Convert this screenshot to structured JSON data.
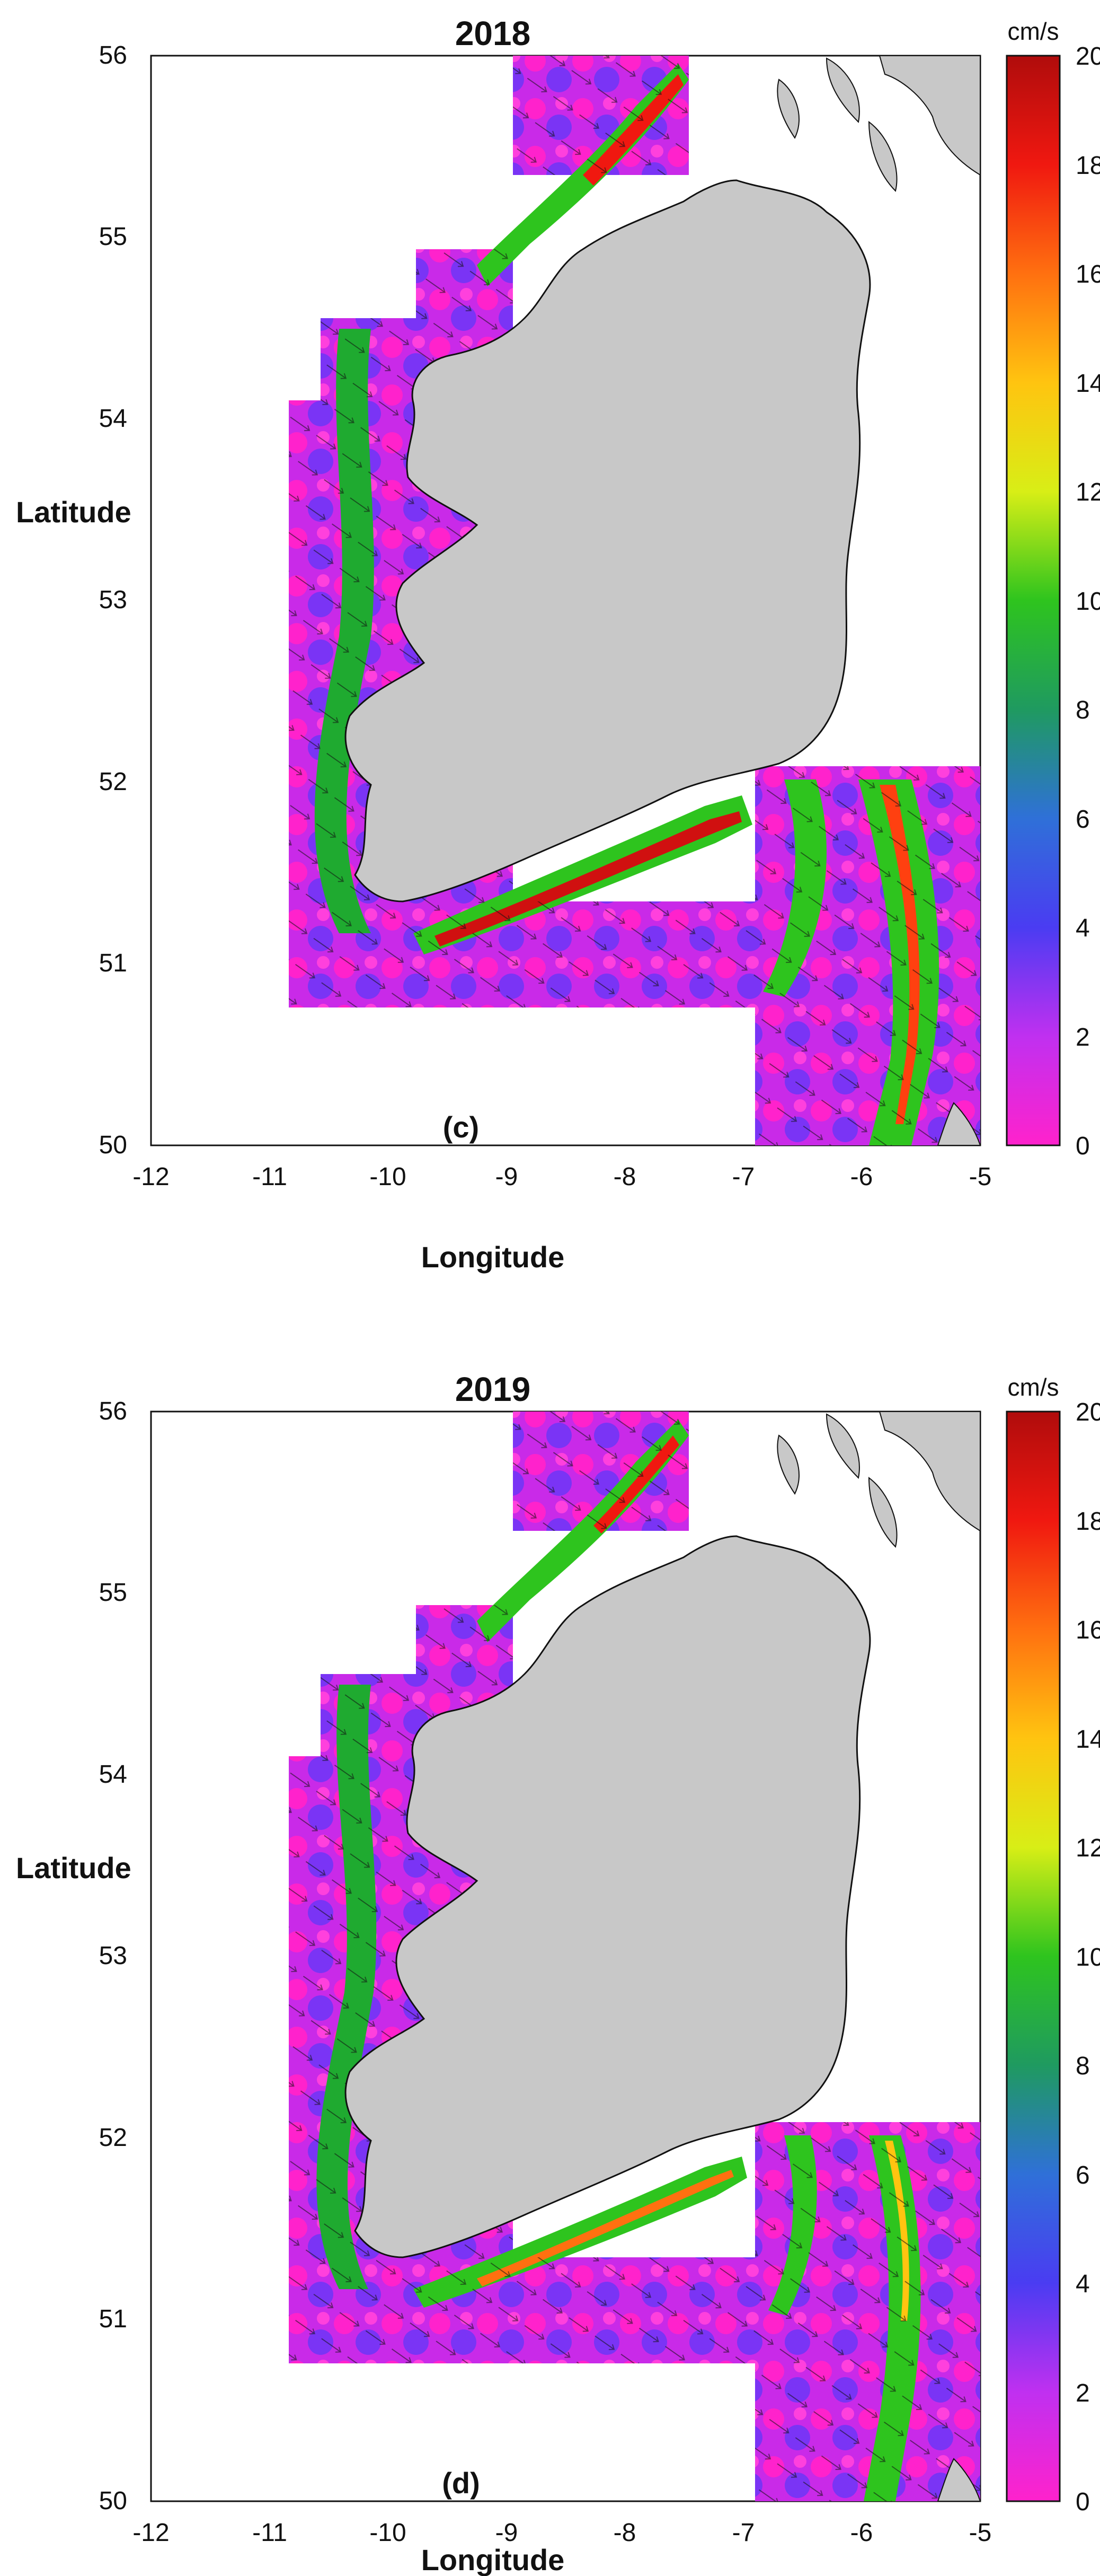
{
  "chart_data": [
    {
      "type": "heatmap",
      "title": "2018",
      "panel_label": "(c)",
      "xlabel": "Longitude",
      "ylabel": "Latitude",
      "xlim": [
        -12,
        -5
      ],
      "ylim": [
        50,
        56
      ],
      "xticks": [
        "-12",
        "-11",
        "-10",
        "-9",
        "-8",
        "-7",
        "-6",
        "-5"
      ],
      "yticks": [
        "50",
        "51",
        "52",
        "53",
        "54",
        "55",
        "56"
      ],
      "colorbar": {
        "unit": "cm/s",
        "range": [
          0,
          20
        ],
        "ticks": [
          "0",
          "2",
          "4",
          "6",
          "8",
          "10",
          "12",
          "14",
          "16",
          "18",
          "20"
        ]
      },
      "strong_currents": [
        "south coast (51.3-52.0 N, -9.5 to -7.0 E)",
        "Celtic/Irish Sea front (-6.5 to -5.5 E)",
        "north-west coast (55-56 N)"
      ]
    },
    {
      "type": "heatmap",
      "title": "2019",
      "panel_label": "(d)",
      "xlabel": "Longitude",
      "ylabel": "Latitude",
      "xlim": [
        -12,
        -5
      ],
      "ylim": [
        50,
        56
      ],
      "xticks": [
        "-12",
        "-11",
        "-10",
        "-9",
        "-8",
        "-7",
        "-6",
        "-5"
      ],
      "yticks": [
        "50",
        "51",
        "52",
        "53",
        "54",
        "55",
        "56"
      ],
      "colorbar": {
        "unit": "cm/s",
        "range": [
          0,
          20
        ],
        "ticks": [
          "0",
          "2",
          "4",
          "6",
          "8",
          "10",
          "12",
          "14",
          "16",
          "18",
          "20"
        ]
      }
    }
  ],
  "colors": {
    "land": "#c8c8c8",
    "colormap": [
      "#ff22cc",
      "#e02ae6",
      "#c030f0",
      "#9a34f5",
      "#7034f5",
      "#4a3cf2",
      "#2f55f0",
      "#2f70d8",
      "#2f7fb0",
      "#268a8a",
      "#1f9a60",
      "#1faa30",
      "#2ec41e",
      "#58d81e",
      "#9ae81e",
      "#d8ee16",
      "#ffea10",
      "#ffc410",
      "#ff9a10",
      "#ff7010",
      "#ff4010",
      "#f01810",
      "#d01010",
      "#b00c0c"
    ]
  }
}
